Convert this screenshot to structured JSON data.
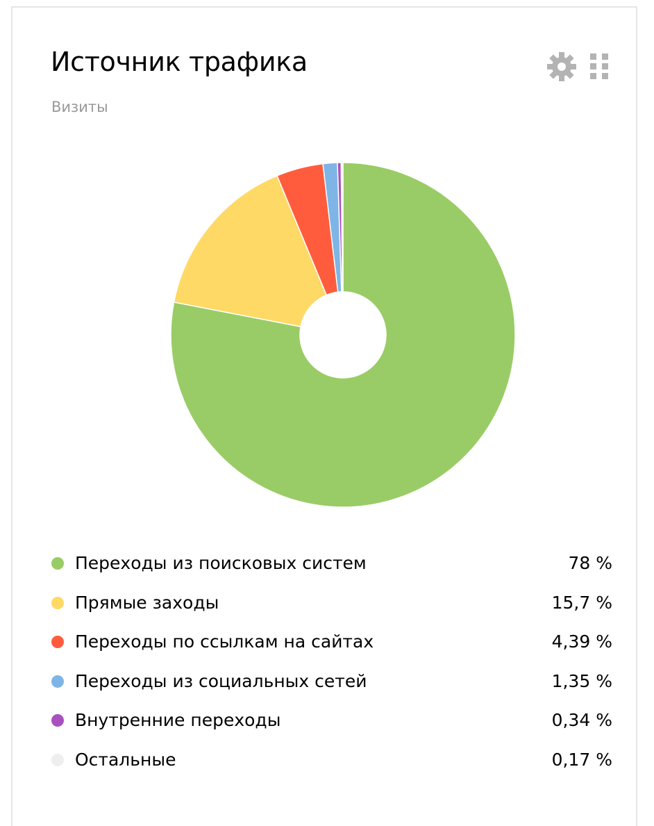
{
  "widget": {
    "title": "Источник трафика",
    "subtitle": "Визиты",
    "icons": {
      "settings": "gear-icon",
      "drag": "drag-handle-icon"
    },
    "icon_color": "#b3b3b3"
  },
  "chart_data": {
    "type": "pie",
    "donut": true,
    "legend_position": "bottom",
    "categories": [
      "Переходы из поисковых систем",
      "Прямые заходы",
      "Переходы по ссылкам на сайтах",
      "Переходы из социальных сетей",
      "Внутренние переходы",
      "Остальные"
    ],
    "values": [
      78,
      15.7,
      4.39,
      1.35,
      0.34,
      0.17
    ],
    "labels": [
      "78 %",
      "15,7 %",
      "4,39 %",
      "1,35 %",
      "0,34 %",
      "0,17 %"
    ],
    "colors": [
      "#99cc66",
      "#ffd966",
      "#ff5c3d",
      "#7fb5e6",
      "#a94fbf",
      "#eeeeee"
    ]
  }
}
